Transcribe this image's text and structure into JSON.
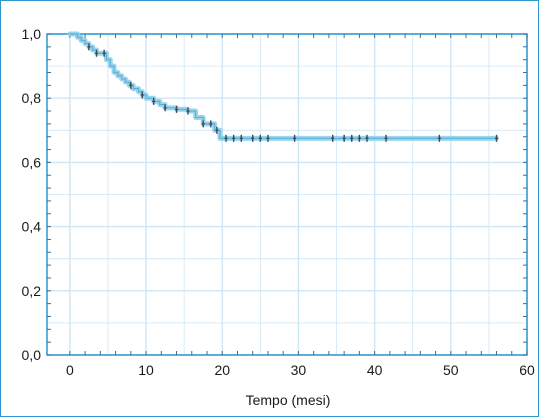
{
  "chart_data": {
    "type": "line",
    "title": "",
    "xlabel": "Tempo (mesi)",
    "ylabel": "",
    "xlim": [
      -3,
      60
    ],
    "ylim": [
      0,
      1
    ],
    "x_ticks": [
      0,
      10,
      20,
      30,
      40,
      50,
      60
    ],
    "x_tick_labels": [
      "0",
      "10",
      "20",
      "30",
      "40",
      "50",
      "60"
    ],
    "y_ticks": [
      0,
      0.2,
      0.4,
      0.6,
      0.8,
      1.0
    ],
    "y_tick_labels": [
      "0,0",
      "0,2",
      "0,4",
      "0,6",
      "0,8",
      "1,0"
    ],
    "grid": true,
    "series": [
      {
        "step": true,
        "x": [
          0,
          1,
          1.5,
          2,
          2.5,
          3,
          3.5,
          4,
          4.8,
          5.3,
          5.8,
          6.3,
          6.8,
          7.3,
          7.8,
          8.3,
          9,
          9.5,
          10,
          11,
          11.8,
          12.5,
          14,
          15.5,
          16.5,
          17.5,
          19,
          19.7,
          56
        ],
        "y": [
          1.0,
          0.99,
          0.98,
          0.97,
          0.96,
          0.95,
          0.94,
          0.94,
          0.92,
          0.9,
          0.88,
          0.87,
          0.86,
          0.85,
          0.84,
          0.83,
          0.82,
          0.81,
          0.8,
          0.79,
          0.78,
          0.77,
          0.765,
          0.76,
          0.74,
          0.72,
          0.7,
          0.675,
          0.675
        ]
      }
    ],
    "censored_x": [
      2.5,
      3.5,
      4.5,
      8,
      9.5,
      11,
      12.5,
      14,
      15.5,
      17.5,
      18.5,
      19.3,
      20.5,
      21.5,
      22.5,
      24,
      25,
      26,
      29.5,
      34.5,
      36,
      37,
      38,
      39,
      41.5,
      48.5,
      56
    ],
    "colors": {
      "curve": "#8fd0ec",
      "marker": "#3c4a55",
      "grid": "#cfe6f4",
      "frame": "#2e97d0"
    }
  }
}
